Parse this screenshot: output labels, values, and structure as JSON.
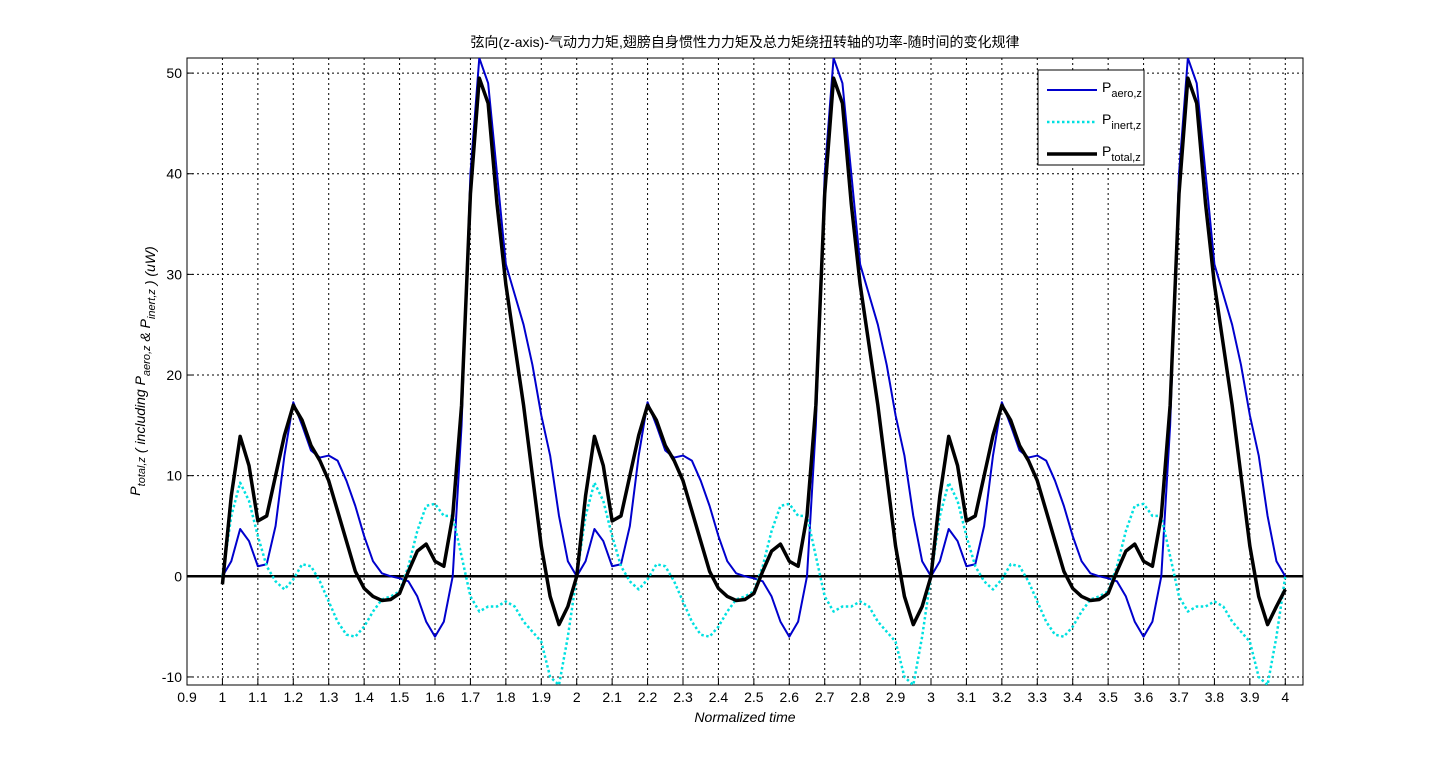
{
  "chart_data": {
    "type": "line",
    "title": "弦向(z-axis)-气动力力矩,翅膀自身惯性力力矩及总力矩绕扭转轴的功率-随时间的变化规律",
    "xlabel": "Normalized time",
    "ylabel_parts": [
      {
        "text": "P",
        "sub": "total,z"
      },
      {
        "text": "  ( including P",
        "sub": "aero,z"
      },
      {
        "text": " & P",
        "sub": "inert,z"
      },
      {
        "text": " )  (uW)"
      }
    ],
    "x": [
      1,
      1.025,
      1.05,
      1.075,
      1.1,
      1.125,
      1.15,
      1.175,
      1.2,
      1.225,
      1.25,
      1.275,
      1.3,
      1.325,
      1.35,
      1.375,
      1.4,
      1.425,
      1.45,
      1.475,
      1.5,
      1.525,
      1.55,
      1.575,
      1.6,
      1.625,
      1.65,
      1.675,
      1.7,
      1.725,
      1.75,
      1.775,
      1.8,
      1.825,
      1.85,
      1.875,
      1.9,
      1.925,
      1.95,
      1.975,
      2,
      2.025,
      2.05,
      2.075,
      2.1,
      2.125,
      2.15,
      2.175,
      2.2,
      2.225,
      2.25,
      2.275,
      2.3,
      2.325,
      2.35,
      2.375,
      2.4,
      2.425,
      2.45,
      2.475,
      2.5,
      2.525,
      2.55,
      2.575,
      2.6,
      2.625,
      2.65,
      2.675,
      2.7,
      2.725,
      2.75,
      2.775,
      2.8,
      2.825,
      2.85,
      2.875,
      2.9,
      2.925,
      2.95,
      2.975,
      3,
      3.025,
      3.05,
      3.075,
      3.1,
      3.125,
      3.15,
      3.175,
      3.2,
      3.225,
      3.25,
      3.275,
      3.3,
      3.325,
      3.35,
      3.375,
      3.4,
      3.425,
      3.45,
      3.475,
      3.5,
      3.525,
      3.55,
      3.575,
      3.6,
      3.625,
      3.65,
      3.675,
      3.7,
      3.725,
      3.75,
      3.775,
      3.8,
      3.825,
      3.85,
      3.875,
      3.9,
      3.925,
      3.95,
      3.975,
      4
    ],
    "series": [
      {
        "name": "P",
        "subscript": "aero,z",
        "color": "#0000cd",
        "width": 2,
        "style": "solid",
        "values": [
          0,
          1.5,
          4.7,
          3.5,
          1,
          1.2,
          5,
          12,
          17.3,
          15,
          12.5,
          11.8,
          12,
          11.5,
          9.5,
          7,
          4,
          1.5,
          0.3,
          0,
          -0.2,
          -0.5,
          -2,
          -4.5,
          -6,
          -4.5,
          0,
          15,
          40,
          51.5,
          49,
          40,
          31,
          28,
          25,
          21,
          16,
          12,
          6,
          1.5,
          0,
          1.5,
          4.7,
          3.5,
          1,
          1.2,
          5,
          12,
          17.3,
          15,
          12.5,
          11.8,
          12,
          11.5,
          9.5,
          7,
          4,
          1.5,
          0.3,
          0,
          -0.2,
          -0.5,
          -2,
          -4.5,
          -6,
          -4.5,
          0,
          15,
          40,
          51.5,
          49,
          40,
          31,
          28,
          25,
          21,
          16,
          12,
          6,
          1.5,
          0,
          1.5,
          4.7,
          3.5,
          1,
          1.2,
          5,
          12,
          17.3,
          15,
          12.5,
          11.8,
          12,
          11.5,
          9.5,
          7,
          4,
          1.5,
          0.3,
          0,
          -0.2,
          -0.5,
          -2,
          -4.5,
          -6,
          -4.5,
          0,
          15,
          40,
          51.5,
          49,
          40,
          31,
          28,
          25,
          21,
          16,
          12,
          6,
          1.5,
          0
        ]
      },
      {
        "name": "P",
        "subscript": "inert,z",
        "color": "#00e0e0",
        "width": 2.5,
        "style": "dotted",
        "values": [
          0,
          6,
          9.3,
          7.5,
          4,
          1,
          -0.5,
          -1.3,
          -0.3,
          1.2,
          1,
          -0.5,
          -2.5,
          -4.5,
          -5.8,
          -6,
          -5,
          -3.5,
          -2.3,
          -2,
          -1.5,
          1,
          4.5,
          7,
          7.2,
          6,
          6,
          2,
          -2,
          -3.5,
          -3,
          -3,
          -2.5,
          -3,
          -4.5,
          -5.5,
          -6.5,
          -10,
          -10.8,
          -6,
          0,
          6,
          9.3,
          7.5,
          4,
          1,
          -0.5,
          -1.3,
          -0.3,
          1.2,
          1,
          -0.5,
          -2.5,
          -4.5,
          -5.8,
          -6,
          -5,
          -3.5,
          -2.3,
          -2,
          -1.5,
          1,
          4.5,
          7,
          7.2,
          6,
          6,
          2,
          -2,
          -3.5,
          -3,
          -3,
          -2.5,
          -3,
          -4.5,
          -5.5,
          -6.5,
          -10,
          -10.8,
          -6,
          0,
          6,
          9.3,
          7.5,
          4,
          1,
          -0.5,
          -1.3,
          -0.3,
          1.2,
          1,
          -0.5,
          -2.5,
          -4.5,
          -5.8,
          -6,
          -5,
          -3.5,
          -2.3,
          -2,
          -1.5,
          1,
          4.5,
          7,
          7.2,
          6,
          6,
          2,
          -2,
          -3.5,
          -3,
          -3,
          -2.5,
          -3,
          -4.5,
          -5.5,
          -6.5,
          -10,
          -10.8,
          -6,
          0
        ]
      },
      {
        "name": "P",
        "subscript": "total,z",
        "color": "#000000",
        "width": 3.5,
        "style": "solid",
        "values": [
          -0.8,
          8,
          13.9,
          11,
          5.5,
          6,
          10,
          14,
          17,
          15.5,
          13,
          11.5,
          9.5,
          6.5,
          3.5,
          0.5,
          -1.2,
          -2,
          -2.4,
          -2.3,
          -1.7,
          0.5,
          2.5,
          3.2,
          1.5,
          1,
          6,
          17,
          38,
          49.5,
          47,
          37,
          29,
          23,
          17,
          10,
          3,
          -2,
          -4.8,
          -3,
          0,
          8,
          13.9,
          11,
          5.5,
          6,
          10,
          14,
          17,
          15.5,
          13,
          11.5,
          9.5,
          6.5,
          3.5,
          0.5,
          -1.2,
          -2,
          -2.4,
          -2.3,
          -1.7,
          0.5,
          2.5,
          3.2,
          1.5,
          1,
          6,
          17,
          38,
          49.5,
          47,
          37,
          29,
          23,
          17,
          10,
          3,
          -2,
          -4.8,
          -3,
          0,
          8,
          13.9,
          11,
          5.5,
          6,
          10,
          14,
          17,
          15.5,
          13,
          11.5,
          9.5,
          6.5,
          3.5,
          0.5,
          -1.2,
          -2,
          -2.4,
          -2.3,
          -1.7,
          0.5,
          2.5,
          3.2,
          1.5,
          1,
          6,
          17,
          38,
          49.5,
          47,
          37,
          29,
          23,
          17,
          10,
          3,
          -2,
          -4.8,
          -3,
          -1.3
        ]
      }
    ],
    "xlim": [
      0.9,
      4.05
    ],
    "ylim": [
      -10.8,
      51.5
    ],
    "xticks": [
      0.9,
      1,
      1.1,
      1.2,
      1.3,
      1.4,
      1.5,
      1.6,
      1.7,
      1.8,
      1.9,
      2,
      2.1,
      2.2,
      2.3,
      2.4,
      2.5,
      2.6,
      2.7,
      2.8,
      2.9,
      3,
      3.1,
      3.2,
      3.3,
      3.4,
      3.5,
      3.6,
      3.7,
      3.8,
      3.9,
      4
    ],
    "yticks": [
      -10,
      0,
      10,
      20,
      30,
      40,
      50
    ],
    "grid": true,
    "legend": "top-right"
  }
}
